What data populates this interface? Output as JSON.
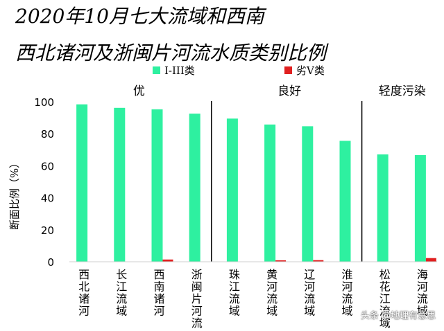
{
  "titles": {
    "line1": "2020年10月七大流域和西南",
    "line2": "西北诸河及浙闽片河流水质类别比例"
  },
  "watermark": "头条 @地理有意思",
  "chart_data": {
    "type": "bar",
    "ylabel": "断面比例（%）",
    "ylim": [
      0,
      100
    ],
    "yticks": [
      0,
      20,
      40,
      60,
      80,
      100
    ],
    "categories": [
      "西北诸河",
      "长江流域",
      "西南诸河",
      "浙闽片河流",
      "珠江流域",
      "黄河流域",
      "辽河流域",
      "淮河流域",
      "松花江流域",
      "海河流域"
    ],
    "series": [
      {
        "name": "I-III类",
        "color": "#2EF0A0",
        "values": [
          98.4,
          96.2,
          95.3,
          92.6,
          89.5,
          85.8,
          84.7,
          75.6,
          67.1,
          66.7
        ]
      },
      {
        "name": "劣V类",
        "color": "#E02020",
        "values": [
          0,
          0,
          1.4,
          0,
          0,
          0.9,
          1.0,
          0,
          0,
          2.3
        ]
      }
    ],
    "groups": [
      {
        "label": "优",
        "from": 0,
        "to": 3
      },
      {
        "label": "良好",
        "from": 4,
        "to": 7
      },
      {
        "label": "轻度污染",
        "from": 8,
        "to": 9
      }
    ],
    "legend_position": "top"
  }
}
